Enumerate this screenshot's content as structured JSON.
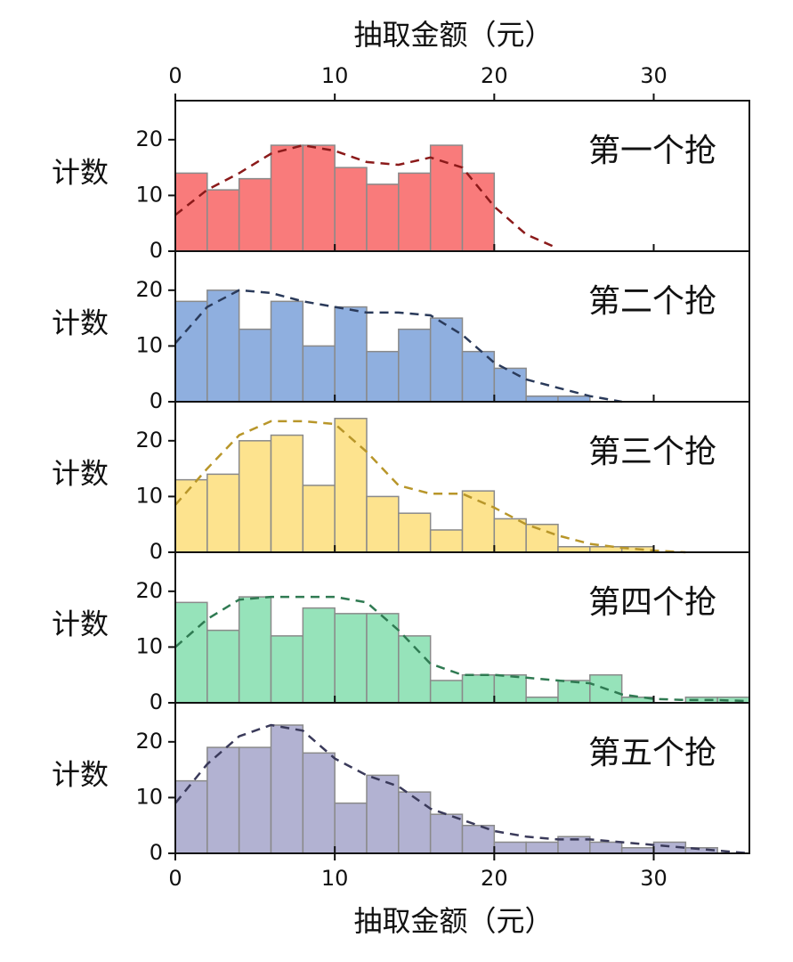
{
  "chart_data": [
    {
      "type": "histogram",
      "xlabel": "抽取金额（元）",
      "xaxis": "top",
      "ylabel": "计数",
      "annotation": "第一个抢",
      "bins": [
        0,
        2,
        4,
        6,
        8,
        10,
        12,
        14,
        16,
        18,
        20
      ],
      "values": [
        14,
        11,
        13,
        19,
        19,
        15,
        12,
        14,
        19,
        14
      ],
      "color": "#f97b7b",
      "edgecolor": "#8a8a8a",
      "fit": {
        "x": [
          0,
          2,
          4,
          6,
          8,
          10,
          12,
          14,
          16,
          18,
          20,
          22,
          24
        ],
        "values": [
          6.5,
          11,
          14,
          17.5,
          19,
          18,
          16,
          15.5,
          16.8,
          15,
          8,
          3,
          0.5
        ],
        "color": "#8b1a1a"
      },
      "xlim": [
        0,
        36
      ],
      "xticks": [
        0,
        10,
        20,
        30
      ],
      "ylim": [
        0,
        27
      ],
      "yticks": [
        0,
        10,
        20
      ]
    },
    {
      "type": "histogram",
      "ylabel": "计数",
      "annotation": "第二个抢",
      "bins": [
        0,
        2,
        4,
        6,
        8,
        10,
        12,
        14,
        16,
        18,
        20,
        22,
        24,
        26
      ],
      "values": [
        18,
        20,
        13,
        18,
        10,
        17,
        9,
        13,
        15,
        9,
        6,
        1,
        1
      ],
      "color": "#8fafdf",
      "edgecolor": "#8a8a8a",
      "fit": {
        "x": [
          0,
          2,
          4,
          6,
          8,
          10,
          12,
          14,
          16,
          18,
          20,
          22,
          24,
          26,
          28
        ],
        "values": [
          10.5,
          17,
          20,
          19.5,
          18,
          17,
          16,
          16,
          15.5,
          12,
          7,
          4,
          2.5,
          1,
          0
        ],
        "color": "#2a3a5a"
      },
      "xlim": [
        0,
        36
      ],
      "xticks": [
        0,
        10,
        20,
        30
      ],
      "ylim": [
        0,
        27
      ],
      "yticks": [
        0,
        10,
        20
      ]
    },
    {
      "type": "histogram",
      "ylabel": "计数",
      "annotation": "第三个抢",
      "bins": [
        0,
        2,
        4,
        6,
        8,
        10,
        12,
        14,
        16,
        18,
        20,
        22,
        24,
        26,
        28,
        30
      ],
      "values": [
        13,
        14,
        20,
        21,
        12,
        24,
        10,
        7,
        4,
        11,
        6,
        5,
        1,
        1,
        1
      ],
      "color": "#fde38e",
      "edgecolor": "#8a8a8a",
      "fit": {
        "x": [
          0,
          2,
          4,
          6,
          8,
          10,
          12,
          14,
          16,
          18,
          20,
          22,
          24,
          26,
          28,
          30,
          32
        ],
        "values": [
          8.5,
          15,
          21,
          23.5,
          23.5,
          23,
          18,
          12,
          10.5,
          10.5,
          8,
          5,
          3,
          1.5,
          0.8,
          0.3,
          0
        ],
        "color": "#b8962a"
      },
      "xlim": [
        0,
        36
      ],
      "xticks": [
        0,
        10,
        20,
        30
      ],
      "ylim": [
        0,
        27
      ],
      "yticks": [
        0,
        10,
        20
      ]
    },
    {
      "type": "histogram",
      "ylabel": "计数",
      "annotation": "第四个抢",
      "bins": [
        0,
        2,
        4,
        6,
        8,
        10,
        12,
        14,
        16,
        18,
        20,
        22,
        24,
        26,
        28,
        30,
        32,
        34,
        36
      ],
      "values": [
        18,
        13,
        19,
        12,
        17,
        16,
        16,
        12,
        4,
        5,
        5,
        1,
        4,
        5,
        1,
        0,
        1,
        1
      ],
      "color": "#96e3ba",
      "edgecolor": "#8a8a8a",
      "fit": {
        "x": [
          0,
          2,
          4,
          6,
          8,
          10,
          12,
          14,
          16,
          18,
          20,
          22,
          24,
          26,
          28,
          30,
          32,
          34,
          36
        ],
        "values": [
          10,
          15,
          18.5,
          19,
          19,
          19,
          18,
          13,
          7,
          5,
          5,
          4.5,
          4,
          3.5,
          1.5,
          0.7,
          0.5,
          0.5,
          0.3
        ],
        "color": "#2f7a52"
      },
      "xlim": [
        0,
        36
      ],
      "xticks": [
        0,
        10,
        20,
        30
      ],
      "ylim": [
        0,
        27
      ],
      "yticks": [
        0,
        10,
        20
      ]
    },
    {
      "type": "histogram",
      "xlabel": "抽取金额（元）",
      "xaxis": "bottom",
      "ylabel": "计数",
      "annotation": "第五个抢",
      "bins": [
        0,
        2,
        4,
        6,
        8,
        10,
        12,
        14,
        16,
        18,
        20,
        22,
        24,
        26,
        28,
        30,
        32,
        34
      ],
      "values": [
        13,
        19,
        19,
        23,
        18,
        9,
        14,
        11,
        7,
        5,
        2,
        2,
        3,
        2,
        1,
        2,
        1
      ],
      "color": "#b2b2d2",
      "edgecolor": "#8a8a8a",
      "fit": {
        "x": [
          0,
          2,
          4,
          6,
          8,
          10,
          12,
          14,
          16,
          18,
          20,
          22,
          24,
          26,
          28,
          30,
          32,
          34,
          36
        ],
        "values": [
          9,
          16,
          21,
          23,
          22,
          17,
          14,
          12,
          8,
          6,
          4,
          3,
          2.5,
          2.5,
          2,
          1.5,
          1,
          0.5,
          0
        ],
        "color": "#3a3a5a"
      },
      "xlim": [
        0,
        36
      ],
      "xticks": [
        0,
        10,
        20,
        30
      ],
      "ylim": [
        0,
        27
      ],
      "yticks": [
        0,
        10,
        20
      ]
    }
  ]
}
